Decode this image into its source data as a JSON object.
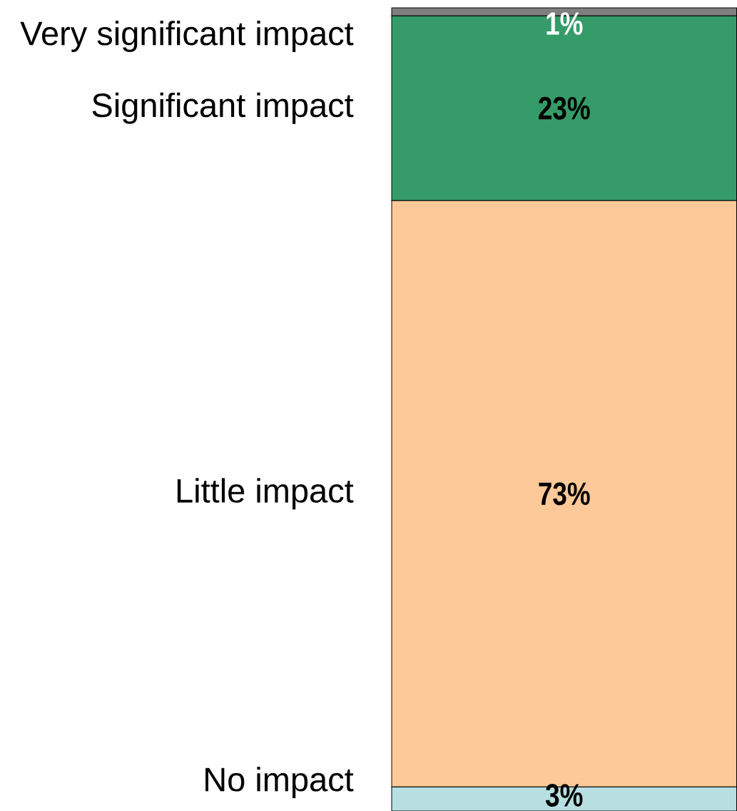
{
  "chart_data": {
    "type": "bar",
    "stacked": true,
    "categories": [
      null
    ],
    "series": [
      {
        "name": "No impact",
        "color": "#b7dfe2",
        "values": [
          3
        ],
        "value_labels": [
          "3%"
        ]
      },
      {
        "name": "Little impact",
        "color": "#fdc999",
        "values": [
          73
        ],
        "value_labels": [
          "73%"
        ]
      },
      {
        "name": "Significant impact",
        "color": "#359b68",
        "values": [
          23
        ],
        "value_labels": [
          "23%"
        ]
      },
      {
        "name": "Very significant impact",
        "color": "#7f7f7f",
        "values": [
          1
        ],
        "value_labels": [
          "1%"
        ]
      }
    ]
  }
}
